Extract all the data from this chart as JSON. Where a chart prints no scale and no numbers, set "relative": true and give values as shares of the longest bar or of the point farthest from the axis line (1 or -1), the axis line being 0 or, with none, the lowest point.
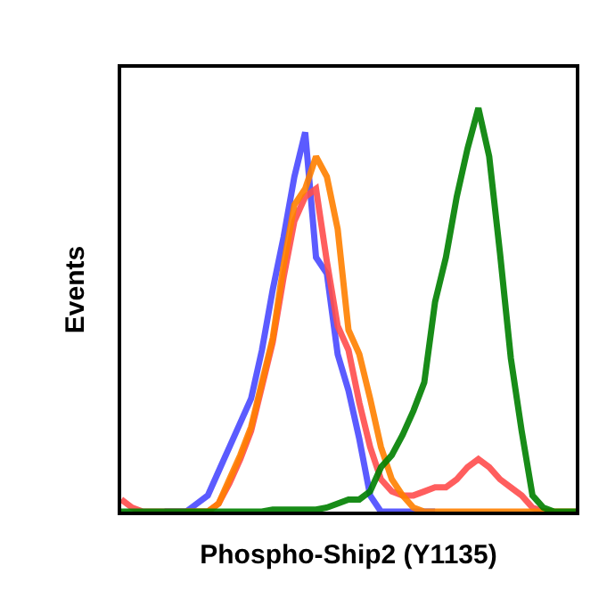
{
  "chart_data": {
    "type": "line",
    "relative": true,
    "xlabel": "Phospho-Ship2 (Y1135)",
    "ylabel": "Events",
    "marker": "none",
    "line_style": "solid",
    "categories": [
      null,
      null,
      null,
      null,
      null,
      null,
      null,
      null,
      null,
      null,
      null,
      null,
      null,
      null,
      null,
      null,
      null,
      null,
      null,
      null,
      null,
      null,
      null,
      null,
      null,
      null,
      null,
      null,
      null,
      null,
      null,
      null,
      null,
      null,
      null,
      null,
      null,
      null,
      null,
      null,
      null,
      null,
      null
    ],
    "series": [
      {
        "color": "#4a4aff",
        "values": [
          null,
          null,
          null,
          null,
          0,
          0,
          0,
          0.02,
          0.04,
          0.1,
          0.16,
          0.22,
          0.28,
          0.4,
          0.55,
          0.68,
          0.83,
          0.94,
          0.63,
          0.59,
          0.39,
          0.3,
          0.18,
          0.04,
          0,
          0,
          0,
          0,
          0,
          0,
          null,
          null,
          null,
          null,
          null,
          null,
          null,
          null,
          null,
          null,
          null,
          null,
          null
        ]
      },
      {
        "color": "#ff4d4d",
        "values": [
          0.03,
          0.01,
          0,
          0,
          0,
          0,
          0,
          0,
          0,
          0.02,
          0.07,
          0.13,
          0.2,
          0.31,
          0.42,
          0.58,
          0.72,
          0.78,
          0.8,
          0.62,
          0.46,
          0.4,
          0.27,
          0.16,
          0.08,
          0.05,
          0.04,
          0.04,
          0.05,
          0.06,
          0.06,
          0.08,
          0.11,
          0.13,
          0.11,
          0.08,
          0.06,
          0.04,
          0.01,
          0,
          0,
          null,
          null
        ]
      },
      {
        "color": "#ff8000",
        "values": [
          null,
          null,
          null,
          null,
          null,
          null,
          0,
          0,
          0,
          0.02,
          0.08,
          0.14,
          0.21,
          0.32,
          0.43,
          0.61,
          0.76,
          0.8,
          0.88,
          0.83,
          0.7,
          0.45,
          0.39,
          0.28,
          0.16,
          0.08,
          0.04,
          0.01,
          0,
          0,
          0,
          0,
          0,
          0,
          0,
          0,
          0,
          0,
          0,
          0,
          0,
          0,
          0
        ]
      },
      {
        "color": "#008000",
        "values": [
          0,
          0,
          0,
          0,
          0,
          0,
          0,
          0,
          0,
          0,
          0,
          0,
          0,
          0,
          0.005,
          0.005,
          0.005,
          0.005,
          0.005,
          0.01,
          0.02,
          0.03,
          0.03,
          0.05,
          0.11,
          0.14,
          0.19,
          0.25,
          0.32,
          0.52,
          0.63,
          0.78,
          0.9,
          1,
          0.88,
          0.64,
          0.38,
          0.2,
          0.04,
          0.01,
          0,
          0,
          0
        ]
      }
    ]
  }
}
